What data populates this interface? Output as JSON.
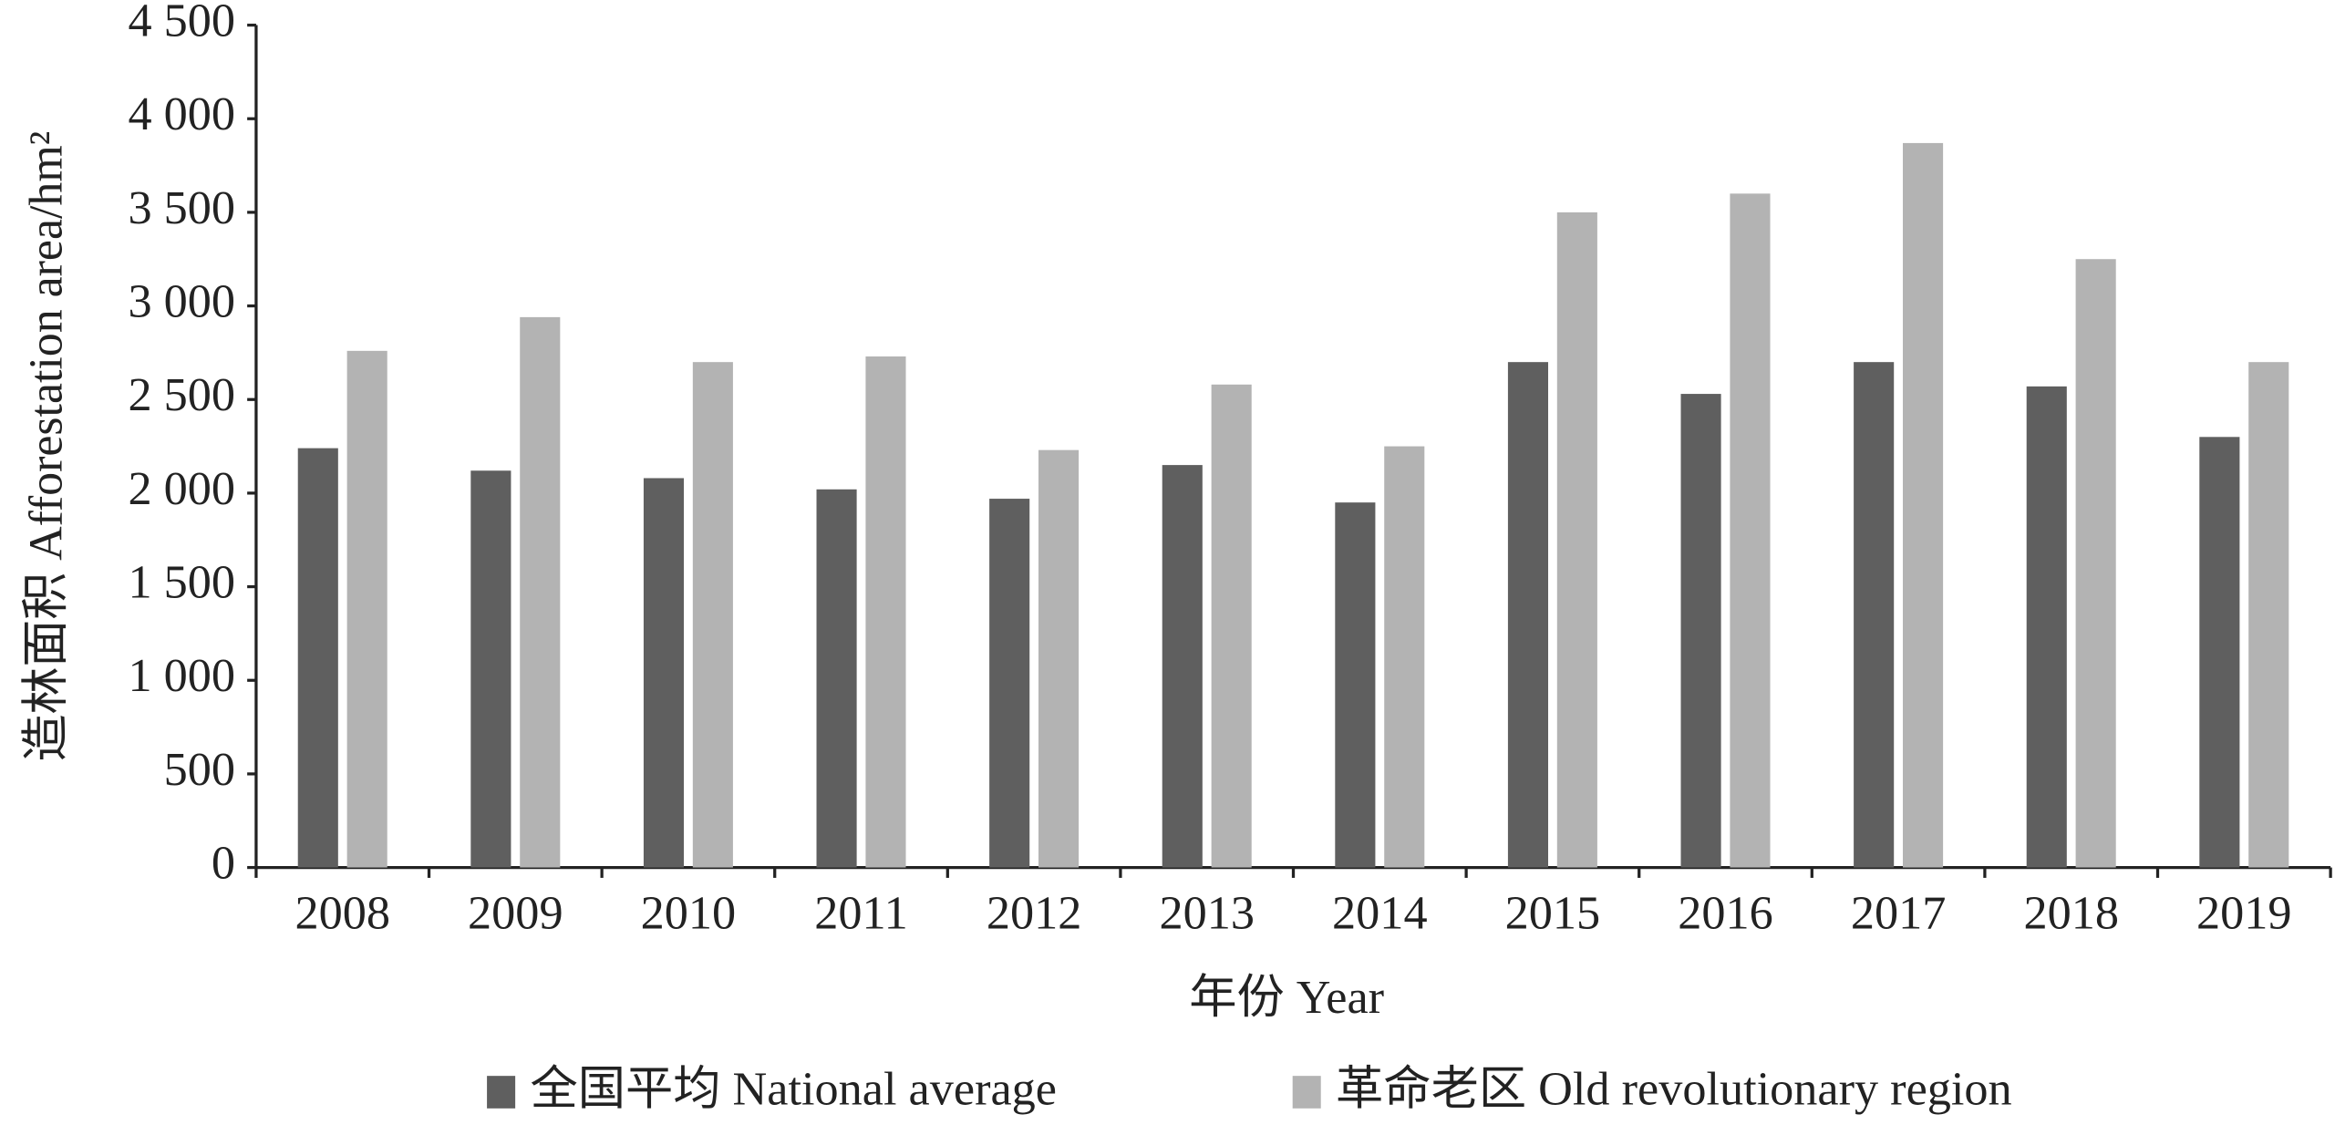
{
  "chart_data": {
    "type": "bar",
    "y_label": "造林面积 Afforestation area/hm²",
    "x_label": "年份 Year",
    "categories": [
      "2008",
      "2009",
      "2010",
      "2011",
      "2012",
      "2013",
      "2014",
      "2015",
      "2016",
      "2017",
      "2018",
      "2019"
    ],
    "series": [
      {
        "name": "全国平均 National average",
        "color": "#5f5f5f",
        "values": [
          2240,
          2120,
          2080,
          2020,
          1970,
          2150,
          1950,
          2700,
          2530,
          2700,
          2570,
          2300
        ]
      },
      {
        "name": "革命老区 Old revolutionary region",
        "color": "#b3b3b3",
        "values": [
          2760,
          2940,
          2700,
          2730,
          2230,
          2580,
          2250,
          3500,
          3600,
          3870,
          3250,
          2700
        ]
      }
    ],
    "ylim": [
      0,
      4500
    ],
    "yticks": [
      0,
      500,
      {
        "value": 1000,
        "label": "1 000"
      },
      {
        "value": 1500,
        "label": "1 500"
      },
      {
        "value": 2000,
        "label": "2 000"
      },
      {
        "value": 2500,
        "label": "2 500"
      },
      {
        "value": 3000,
        "label": "3 000"
      },
      {
        "value": 3500,
        "label": "3 500"
      },
      {
        "value": 4000,
        "label": "4 000"
      },
      {
        "value": 4500,
        "label": "4 500"
      }
    ],
    "grid": false,
    "legend": "bottom"
  }
}
